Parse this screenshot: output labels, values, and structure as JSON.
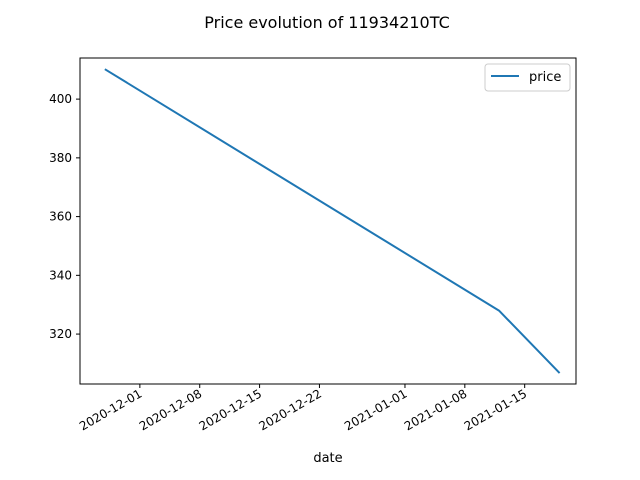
{
  "chart_data": {
    "type": "line",
    "title": "Price evolution of 11934210TC",
    "xlabel": "date",
    "ylabel": "",
    "x_axis_type": "date",
    "xlim": [
      "2020-11-24",
      "2021-01-21"
    ],
    "ylim": [
      303,
      414
    ],
    "x_ticks": [
      "2020-12-01",
      "2020-12-08",
      "2020-12-15",
      "2020-12-22",
      "2021-01-01",
      "2021-01-08",
      "2021-01-15"
    ],
    "y_ticks": [
      320,
      340,
      360,
      380,
      400
    ],
    "grid": false,
    "legend": {
      "position": "top-right",
      "entries": [
        "price"
      ]
    },
    "series": [
      {
        "name": "price",
        "color": "#1f77b4",
        "points": [
          {
            "x": "2020-11-27",
            "y": 410
          },
          {
            "x": "2021-01-12",
            "y": 328
          },
          {
            "x": "2021-01-19",
            "y": 307
          }
        ]
      }
    ]
  }
}
